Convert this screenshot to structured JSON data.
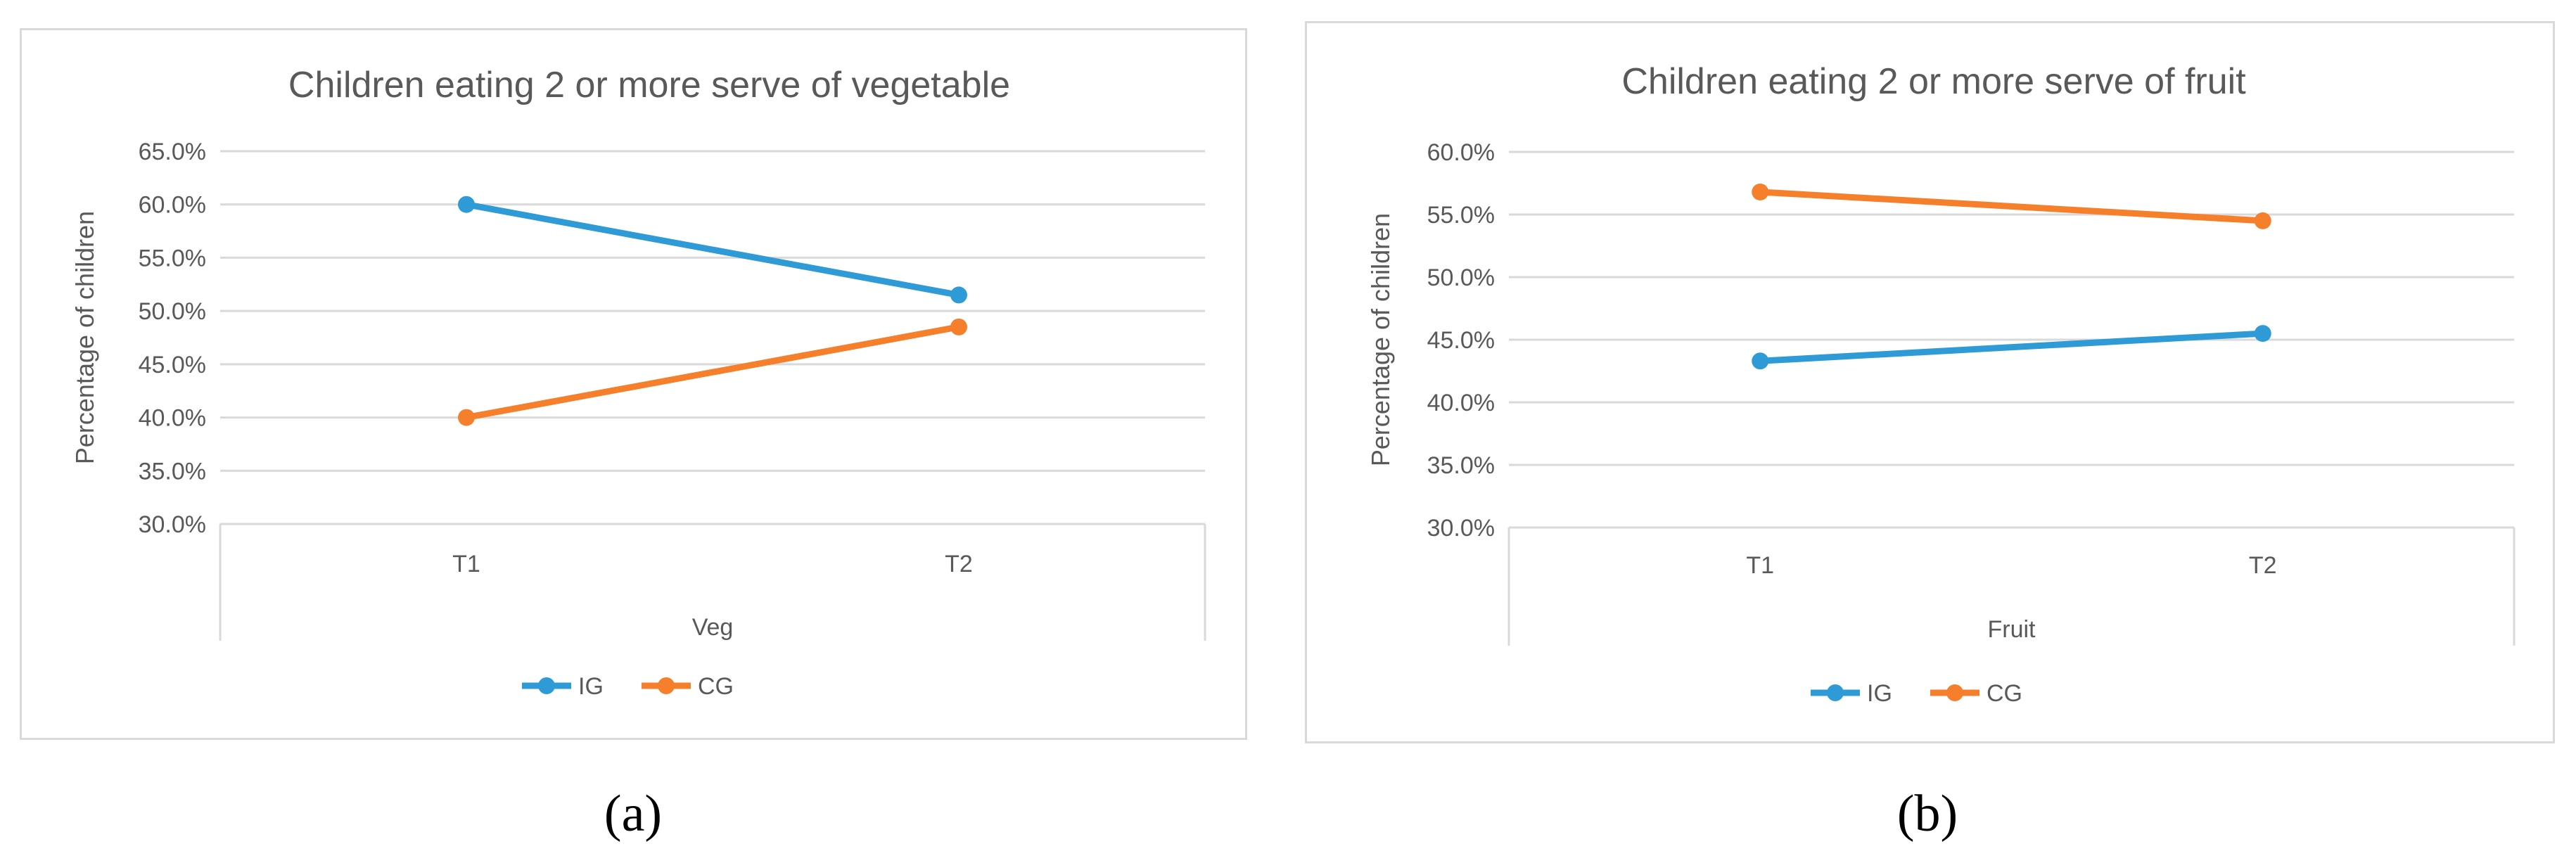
{
  "figure": {
    "captions": [
      "(a)",
      "(b)"
    ]
  },
  "colors": {
    "IG": "#2f9bd6",
    "CG": "#f57f2a",
    "grid": "#d9d9d9",
    "text": "#595959"
  },
  "chart_data": [
    {
      "type": "line",
      "title": "Children eating 2 or more serve of vegetable",
      "xlabel": "Veg",
      "ylabel": "Percentage of children",
      "categories": [
        "T1",
        "T2"
      ],
      "yticks": [
        "30.0%",
        "35.0%",
        "40.0%",
        "45.0%",
        "50.0%",
        "55.0%",
        "60.0%",
        "65.0%"
      ],
      "ylim": [
        30,
        65
      ],
      "grid": true,
      "legend": "bottom",
      "series": [
        {
          "name": "IG",
          "values": [
            60.0,
            51.5
          ]
        },
        {
          "name": "CG",
          "values": [
            40.0,
            48.5
          ]
        }
      ]
    },
    {
      "type": "line",
      "title": "Children eating 2 or more serve of fruit",
      "xlabel": "Fruit",
      "ylabel": "Percentage of children",
      "categories": [
        "T1",
        "T2"
      ],
      "yticks": [
        "30.0%",
        "35.0%",
        "40.0%",
        "45.0%",
        "50.0%",
        "55.0%",
        "60.0%"
      ],
      "ylim": [
        30,
        60
      ],
      "grid": true,
      "legend": "bottom",
      "series": [
        {
          "name": "IG",
          "values": [
            43.3,
            45.5
          ]
        },
        {
          "name": "CG",
          "values": [
            56.8,
            54.5
          ]
        }
      ]
    }
  ]
}
